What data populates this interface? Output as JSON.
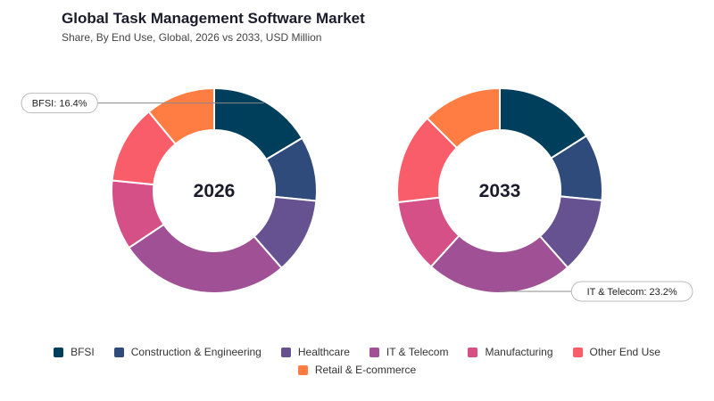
{
  "header": {
    "title": "Global Task Management Software Market",
    "subtitle": "Share, By End Use, Global, 2026 vs 2033, USD Million"
  },
  "chart_data": {
    "type": "pie",
    "variant": "donut",
    "categories": [
      "BFSI",
      "Construction & Engineering",
      "Healthcare",
      "IT & Telecom",
      "Manufacturing",
      "Other End Use",
      "Retail & E-commerce"
    ],
    "colors": [
      "#003f5c",
      "#2f4b7c",
      "#665191",
      "#a05195",
      "#d45087",
      "#f95d6a",
      "#ff7c43"
    ],
    "series": [
      {
        "name": "2026",
        "values": [
          16.4,
          10.2,
          12.0,
          27.0,
          11.0,
          12.4,
          11.0
        ],
        "callout": {
          "category_index": 0,
          "text": "BFSI: 16.4%",
          "side": "left"
        }
      },
      {
        "name": "2033",
        "values": [
          16.0,
          10.5,
          12.0,
          23.2,
          11.5,
          14.3,
          12.5
        ],
        "callout": {
          "category_index": 3,
          "text": "IT & Telecom: 23.2%",
          "side": "right"
        }
      }
    ],
    "legend_position": "bottom"
  }
}
